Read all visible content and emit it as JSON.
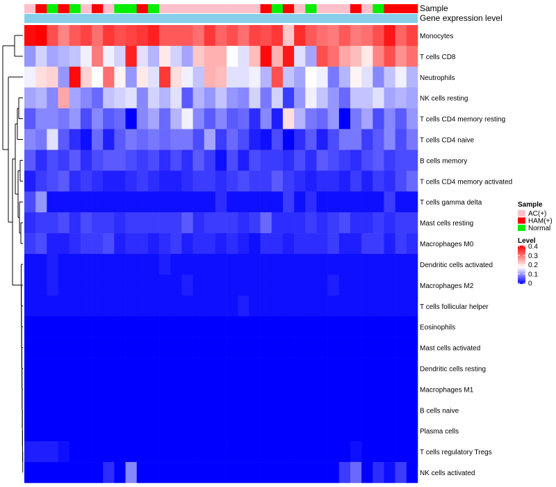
{
  "chart_data": {
    "type": "heatmap",
    "annotation_labels": [
      "Sample",
      "Gene expression level"
    ],
    "rows": [
      "Monocytes",
      "T cells CD8",
      "Neutrophils",
      "NK cells resting",
      "T cells CD4 memory resting",
      "T cells CD4 naive",
      "B cells memory",
      "T cells CD4 memory activated",
      "T cells gamma delta",
      "Mast cells resting",
      "Macrophages M0",
      "Dendritic cells activated",
      "Macrophages M2",
      "T cells follicular helper",
      "Eosinophils",
      "Mast cells activated",
      "Dendritic cells resting",
      "Macrophages M1",
      "B cells naive",
      "Plasma cells",
      "T cells regulatory  Tregs",
      "NK cells activated"
    ],
    "sample_groups": [
      "AC",
      "HAM",
      "Normal",
      "HAM",
      "Normal",
      "AC",
      "HAM",
      "AC",
      "Normal",
      "Normal",
      "HAM",
      "Normal",
      "AC",
      "AC",
      "AC",
      "AC",
      "AC",
      "AC",
      "AC",
      "AC",
      "AC",
      "HAM",
      "Normal",
      "HAM",
      "AC",
      "Normal",
      "AC",
      "AC",
      "AC",
      "HAM",
      "AC",
      "Normal",
      "HAM",
      "HAM",
      "HAM"
    ],
    "legend": {
      "sample_title": "Sample",
      "sample_entries": [
        {
          "key": "AC",
          "label": "AC(+)",
          "color": "#FFC0CB"
        },
        {
          "key": "HAM",
          "label": "HAM(+)",
          "color": "#FF0000"
        },
        {
          "key": "Normal",
          "label": "Normal",
          "color": "#00EE00"
        }
      ],
      "level_title": "Level",
      "level_ticks": [
        "0.4",
        "0.3",
        "0.2",
        "0.1",
        "0"
      ],
      "level_range": [
        0,
        0.4
      ]
    },
    "color_scale": {
      "low": "#0000FF",
      "mid": "#FFFFFF",
      "high": "#FF0000",
      "mid_value": 0.17
    },
    "gene_expression_color": "#87CEEB",
    "dendrogram_note": "hierarchical clustering of rows",
    "values": [
      [
        0.39,
        0.4,
        0.33,
        0.28,
        0.32,
        0.34,
        0.3,
        0.35,
        0.33,
        0.34,
        0.35,
        0.37,
        0.32,
        0.32,
        0.32,
        0.3,
        0.35,
        0.31,
        0.33,
        0.3,
        0.34,
        0.33,
        0.35,
        0.22,
        0.36,
        0.32,
        0.3,
        0.29,
        0.32,
        0.29,
        0.3,
        0.33,
        0.38,
        0.31,
        0.34
      ],
      [
        0.1,
        0.14,
        0.11,
        0.12,
        0.13,
        0.16,
        0.29,
        0.16,
        0.14,
        0.37,
        0.15,
        0.12,
        0.19,
        0.14,
        0.11,
        0.22,
        0.24,
        0.24,
        0.17,
        0.15,
        0.23,
        0.39,
        0.24,
        0.38,
        0.15,
        0.11,
        0.33,
        0.3,
        0.25,
        0.23,
        0.19,
        0.28,
        0.33,
        0.27,
        0.3
      ],
      [
        0.16,
        0.2,
        0.21,
        0.1,
        0.39,
        0.21,
        0.17,
        0.3,
        0.18,
        0.1,
        0.19,
        0.15,
        0.35,
        0.2,
        0.16,
        0.13,
        0.24,
        0.23,
        0.15,
        0.15,
        0.16,
        0.12,
        0.33,
        0.13,
        0.11,
        0.17,
        0.16,
        0.08,
        0.12,
        0.18,
        0.15,
        0.09,
        0.13,
        0.16,
        0.12
      ],
      [
        0.11,
        0.12,
        0.09,
        0.25,
        0.11,
        0.09,
        0.07,
        0.13,
        0.14,
        0.15,
        0.09,
        0.14,
        0.12,
        0.15,
        0.06,
        0.12,
        0.1,
        0.13,
        0.1,
        0.09,
        0.14,
        0.08,
        0.14,
        0.04,
        0.1,
        0.16,
        0.13,
        0.1,
        0.07,
        0.13,
        0.13,
        0.15,
        0.11,
        0.12,
        0.11
      ],
      [
        0.06,
        0.09,
        0.09,
        0.08,
        0.1,
        0.05,
        0.09,
        0.06,
        0.07,
        0.0,
        0.09,
        0.11,
        0.07,
        0.12,
        0.16,
        0.09,
        0.06,
        0.09,
        0.06,
        0.07,
        0.03,
        0.09,
        0.02,
        0.2,
        0.12,
        0.08,
        0.07,
        0.1,
        0.0,
        0.08,
        0.11,
        0.05,
        0.09,
        0.06,
        0.1
      ],
      [
        0.09,
        0.08,
        0.15,
        0.06,
        0.03,
        0.01,
        0.07,
        0.02,
        0.06,
        0.08,
        0.07,
        0.08,
        0.07,
        0.08,
        0.08,
        0.05,
        0.11,
        0.04,
        0.07,
        0.05,
        0.02,
        0.01,
        0.05,
        0.0,
        0.03,
        0.06,
        0.02,
        0.05,
        0.08,
        0.08,
        0.04,
        0.06,
        0.09,
        0.05,
        0.08
      ],
      [
        0.06,
        0.03,
        0.05,
        0.04,
        0.06,
        0.03,
        0.05,
        0.06,
        0.06,
        0.05,
        0.04,
        0.05,
        0.03,
        0.05,
        0.03,
        0.06,
        0.04,
        0.01,
        0.05,
        0.02,
        0.05,
        0.04,
        0.04,
        0.03,
        0.05,
        0.03,
        0.06,
        0.05,
        0.04,
        0.03,
        0.05,
        0.06,
        0.04,
        0.05,
        0.05
      ],
      [
        0.02,
        0.04,
        0.05,
        0.06,
        0.03,
        0.04,
        0.03,
        0.02,
        0.02,
        0.03,
        0.04,
        0.03,
        0.02,
        0.02,
        0.03,
        0.04,
        0.04,
        0.03,
        0.04,
        0.05,
        0.04,
        0.04,
        0.06,
        0.04,
        0.03,
        0.02,
        0.03,
        0.03,
        0.02,
        0.04,
        0.02,
        0.04,
        0.03,
        0.05,
        0.07
      ],
      [
        0.05,
        0.1,
        0.01,
        0.01,
        0.01,
        0.01,
        0.01,
        0.01,
        0.01,
        0.01,
        0.01,
        0.01,
        0.01,
        0.01,
        0.01,
        0.01,
        0.01,
        0.03,
        0.01,
        0.01,
        0.01,
        0.01,
        0.01,
        0.04,
        0.01,
        0.03,
        0.01,
        0.01,
        0.01,
        0.01,
        0.01,
        0.01,
        0.04,
        0.01,
        0.01
      ],
      [
        0.03,
        0.04,
        0.04,
        0.05,
        0.03,
        0.05,
        0.04,
        0.04,
        0.03,
        0.04,
        0.04,
        0.04,
        0.04,
        0.04,
        0.06,
        0.03,
        0.04,
        0.04,
        0.04,
        0.03,
        0.04,
        0.07,
        0.03,
        0.03,
        0.03,
        0.04,
        0.03,
        0.04,
        0.05,
        0.03,
        0.03,
        0.04,
        0.03,
        0.04,
        0.04
      ],
      [
        0.04,
        0.05,
        0.02,
        0.02,
        0.03,
        0.04,
        0.04,
        0.05,
        0.02,
        0.03,
        0.03,
        0.02,
        0.03,
        0.04,
        0.02,
        0.03,
        0.03,
        0.02,
        0.03,
        0.02,
        0.01,
        0.03,
        0.03,
        0.02,
        0.03,
        0.03,
        0.03,
        0.04,
        0.02,
        0.02,
        0.04,
        0.04,
        0.02,
        0.04,
        0.03
      ],
      [
        0.01,
        0.01,
        0.02,
        0.01,
        0.01,
        0.01,
        0.01,
        0.01,
        0.01,
        0.01,
        0.01,
        0.01,
        0.02,
        0.01,
        0.01,
        0.01,
        0.01,
        0.01,
        0.01,
        0.01,
        0.01,
        0.01,
        0.01,
        0.01,
        0.01,
        0.01,
        0.01,
        0.01,
        0.01,
        0.01,
        0.01,
        0.01,
        0.01,
        0.01,
        0.01
      ],
      [
        0.01,
        0.01,
        0.02,
        0.01,
        0.01,
        0.01,
        0.01,
        0.01,
        0.01,
        0.01,
        0.01,
        0.01,
        0.01,
        0.01,
        0.02,
        0.01,
        0.01,
        0.01,
        0.01,
        0.01,
        0.01,
        0.01,
        0.01,
        0.01,
        0.01,
        0.01,
        0.01,
        0.02,
        0.01,
        0.01,
        0.01,
        0.01,
        0.01,
        0.01,
        0.01
      ],
      [
        0.01,
        0.01,
        0.01,
        0.01,
        0.01,
        0.01,
        0.01,
        0.01,
        0.01,
        0.01,
        0.01,
        0.01,
        0.01,
        0.01,
        0.01,
        0.01,
        0.01,
        0.01,
        0.01,
        0.02,
        0.01,
        0.01,
        0.01,
        0.01,
        0.01,
        0.01,
        0.01,
        0.01,
        0.01,
        0.01,
        0.01,
        0.01,
        0.01,
        0.01,
        0.01
      ],
      [
        0.0,
        0.0,
        0.0,
        0.0,
        0.0,
        0.0,
        0.0,
        0.0,
        0.0,
        0.0,
        0.0,
        0.0,
        0.0,
        0.0,
        0.0,
        0.0,
        0.0,
        0.0,
        0.0,
        0.0,
        0.0,
        0.0,
        0.0,
        0.0,
        0.0,
        0.0,
        0.0,
        0.0,
        0.0,
        0.0,
        0.0,
        0.0,
        0.0,
        0.0,
        0.0
      ],
      [
        0.0,
        0.0,
        0.0,
        0.0,
        0.0,
        0.0,
        0.0,
        0.0,
        0.0,
        0.0,
        0.0,
        0.0,
        0.0,
        0.0,
        0.0,
        0.0,
        0.0,
        0.0,
        0.0,
        0.0,
        0.0,
        0.0,
        0.0,
        0.0,
        0.0,
        0.0,
        0.0,
        0.0,
        0.0,
        0.0,
        0.0,
        0.0,
        0.0,
        0.0,
        0.0
      ],
      [
        0.0,
        0.0,
        0.0,
        0.0,
        0.0,
        0.0,
        0.0,
        0.0,
        0.0,
        0.0,
        0.0,
        0.0,
        0.0,
        0.0,
        0.0,
        0.0,
        0.0,
        0.0,
        0.0,
        0.0,
        0.0,
        0.0,
        0.0,
        0.0,
        0.0,
        0.0,
        0.0,
        0.0,
        0.0,
        0.0,
        0.0,
        0.0,
        0.0,
        0.0,
        0.0
      ],
      [
        0.0,
        0.0,
        0.0,
        0.0,
        0.0,
        0.0,
        0.0,
        0.0,
        0.0,
        0.0,
        0.0,
        0.0,
        0.0,
        0.0,
        0.0,
        0.0,
        0.0,
        0.0,
        0.0,
        0.0,
        0.0,
        0.0,
        0.0,
        0.0,
        0.0,
        0.0,
        0.0,
        0.0,
        0.0,
        0.0,
        0.0,
        0.0,
        0.0,
        0.0,
        0.0
      ],
      [
        0.0,
        0.0,
        0.0,
        0.0,
        0.0,
        0.0,
        0.0,
        0.0,
        0.0,
        0.0,
        0.0,
        0.0,
        0.0,
        0.0,
        0.0,
        0.0,
        0.0,
        0.0,
        0.0,
        0.0,
        0.0,
        0.0,
        0.0,
        0.0,
        0.0,
        0.0,
        0.0,
        0.0,
        0.0,
        0.0,
        0.0,
        0.0,
        0.0,
        0.0,
        0.0
      ],
      [
        0.0,
        0.0,
        0.0,
        0.0,
        0.0,
        0.0,
        0.0,
        0.0,
        0.0,
        0.0,
        0.0,
        0.0,
        0.0,
        0.0,
        0.0,
        0.0,
        0.0,
        0.0,
        0.0,
        0.0,
        0.0,
        0.0,
        0.0,
        0.0,
        0.0,
        0.0,
        0.0,
        0.0,
        0.0,
        0.0,
        0.0,
        0.0,
        0.0,
        0.0,
        0.0
      ],
      [
        0.02,
        0.02,
        0.02,
        0.01,
        0.0,
        0.0,
        0.0,
        0.0,
        0.0,
        0.0,
        0.0,
        0.0,
        0.0,
        0.0,
        0.0,
        0.0,
        0.0,
        0.0,
        0.0,
        0.0,
        0.0,
        0.0,
        0.0,
        0.0,
        0.0,
        0.0,
        0.0,
        0.0,
        0.0,
        0.01,
        0.0,
        0.0,
        0.0,
        0.0,
        0.0
      ],
      [
        0.0,
        0.0,
        0.0,
        0.0,
        0.0,
        0.0,
        0.0,
        0.03,
        0.0,
        0.09,
        0.0,
        0.0,
        0.0,
        0.0,
        0.0,
        0.0,
        0.0,
        0.0,
        0.0,
        0.0,
        0.0,
        0.0,
        0.0,
        0.0,
        0.0,
        0.0,
        0.0,
        0.0,
        0.04,
        0.07,
        0.0,
        0.03,
        0.01,
        0.04,
        0.0
      ]
    ]
  }
}
